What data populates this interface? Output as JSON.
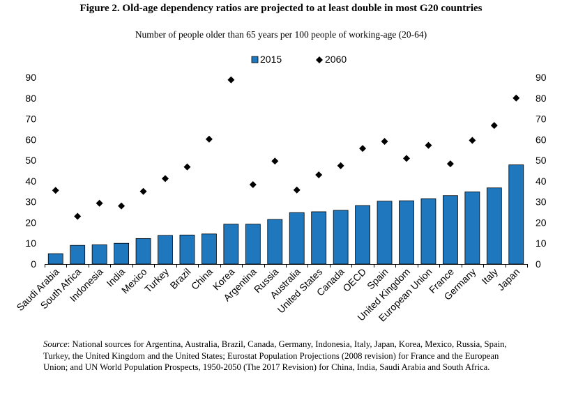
{
  "title": "Figure 2. Old-age dependency ratios are projected to at least double in most G20 countries",
  "source": {
    "label": "Source",
    "text": ": National sources for Argentina, Australia, Brazil, Canada, Germany, Indonesia, Italy, Japan, Korea, Mexico, Russia, Spain, Turkey, the United Kingdom and the United States; Eurostat Population Projections (2008 revision) for France and the European Union; and UN World Population Prospects, 1950-2050 (The 2017 Revision) for China, India, Saudi Arabia and South Africa."
  },
  "chart_data": {
    "type": "bar",
    "subtitle": "Number of people older than 65 years per 100 people of working-age (20-64)",
    "categories": [
      "Saudi Arabia",
      "South Africa",
      "Indonesia",
      "India",
      "Mexico",
      "Turkey",
      "Brazil",
      "China",
      "Korea",
      "Argentina",
      "Russia",
      "Australia",
      "United States",
      "Canada",
      "OECD",
      "Spain",
      "United Kingdom",
      "European Union",
      "France",
      "Germany",
      "Italy",
      "Japan"
    ],
    "series": [
      {
        "name": "2015",
        "mark": "bar",
        "color": "#1f77bd",
        "values": [
          5,
          9,
          9.3,
          10,
          12.3,
          13.8,
          14,
          14.5,
          19.2,
          19.2,
          21.5,
          24.8,
          25.2,
          25.9,
          28.2,
          30.3,
          30.5,
          31.5,
          33,
          34.8,
          36.7,
          47.8
        ]
      },
      {
        "name": "2060",
        "mark": "diamond",
        "color": "#000000",
        "values": [
          35.5,
          23,
          29.3,
          28,
          35,
          41.2,
          46.8,
          60.2,
          88.8,
          38.3,
          49.6,
          35.7,
          43,
          47.4,
          55.7,
          59.1,
          50.9,
          57.2,
          48.3,
          59.6,
          66.8,
          80
        ]
      }
    ],
    "ylim": [
      0,
      90
    ],
    "yticks": [
      0,
      10,
      20,
      30,
      40,
      50,
      60,
      70,
      80,
      90
    ],
    "legend_position": "top-center",
    "grid": false
  }
}
